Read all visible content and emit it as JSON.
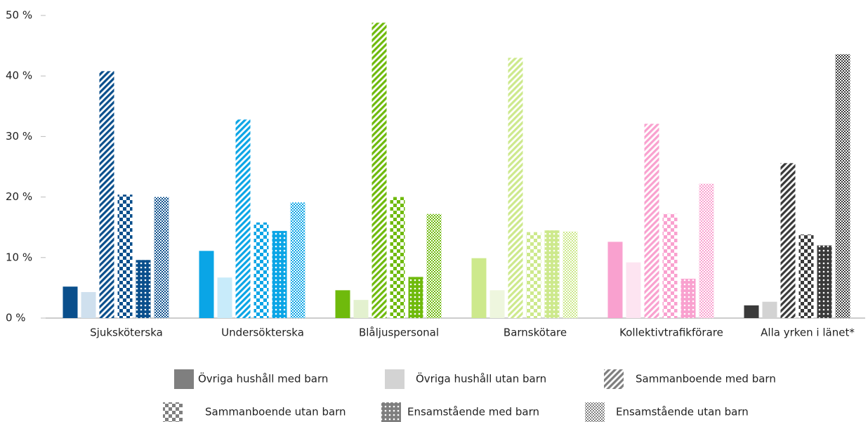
{
  "chart_data": {
    "type": "bar",
    "categories": [
      "Sjuksköterska",
      "Undersökterska",
      "Blåljuspersonal",
      "Barnskötare",
      "Kollektivtrafikförare",
      "Alla yrken i länet*"
    ],
    "category_colors": [
      "#0a4f8c",
      "#0aa5e6",
      "#6fba0c",
      "#cde98c",
      "#f9a1cf",
      "#3a3a3a"
    ],
    "category_light_colors": [
      "#cfe0ee",
      "#c8ebfa",
      "#e3f1cf",
      "#eef6de",
      "#fde4f1",
      "#d3d3d3"
    ],
    "series": [
      {
        "name": "Övriga hushåll med barn",
        "color": "#7f7f7f",
        "pattern": "solid",
        "values": [
          5.2,
          11.1,
          4.6,
          9.9,
          12.6,
          2.1
        ]
      },
      {
        "name": "Övriga hushåll utan barn",
        "color": "#d3d3d3",
        "pattern": "light",
        "values": [
          4.3,
          6.7,
          3.0,
          4.6,
          9.2,
          2.7
        ]
      },
      {
        "name": "Sammanboende med barn",
        "color": "#7f7f7f",
        "pattern": "stripes",
        "values": [
          40.8,
          32.8,
          48.8,
          43.0,
          32.1,
          25.6
        ]
      },
      {
        "name": "Sammanboende utan barn",
        "color": "#7f7f7f",
        "pattern": "checker",
        "values": [
          20.4,
          15.8,
          20.0,
          14.2,
          17.2,
          13.8
        ]
      },
      {
        "name": "Ensamstående med barn",
        "color": "#7f7f7f",
        "pattern": "dots",
        "values": [
          9.6,
          14.4,
          6.8,
          14.5,
          6.5,
          12.0
        ]
      },
      {
        "name": "Ensamstående utan barn",
        "color": "#7f7f7f",
        "pattern": "fine",
        "values": [
          20.0,
          19.1,
          17.2,
          14.3,
          22.2,
          43.6
        ]
      }
    ],
    "ylim": [
      0,
      50
    ],
    "yticks": [
      {
        "value": 0,
        "label": "0 %"
      },
      {
        "value": 10,
        "label": "10 %"
      },
      {
        "value": 20,
        "label": "20 %"
      },
      {
        "value": 30,
        "label": "30 %"
      },
      {
        "value": 40,
        "label": "40 %"
      },
      {
        "value": 50,
        "label": "50 %"
      }
    ]
  }
}
